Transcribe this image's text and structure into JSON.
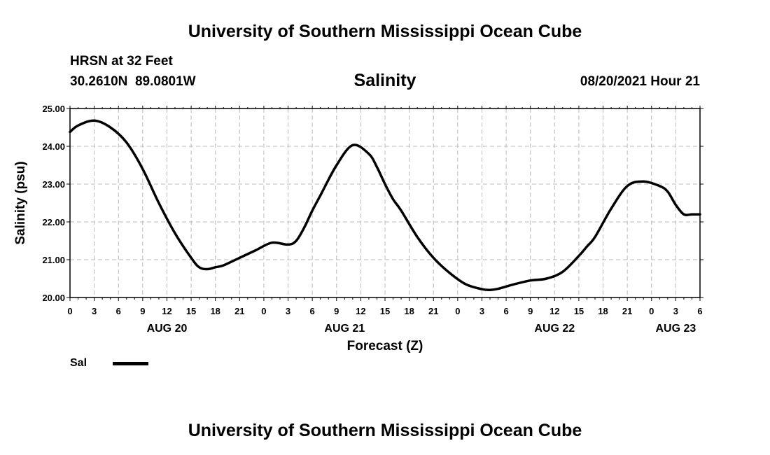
{
  "header": {
    "title_top": "University of Southern Mississippi Ocean Cube",
    "station": "HRSN at 32 Feet",
    "coords": "30.2610N  89.0801W",
    "chart_title": "Salinity",
    "datetime": "08/20/2021 Hour 21",
    "title_bottom": "University of Southern Mississippi Ocean Cube"
  },
  "legend": {
    "label": "Sal"
  },
  "colors": {
    "line": "#000000",
    "grid": "#bbbbbb",
    "background": "#ffffff"
  },
  "chart_data": {
    "type": "line",
    "title": "Salinity",
    "xlabel": "Forecast (Z)",
    "ylabel": "Salinity (psu)",
    "ylim": [
      20.0,
      25.0
    ],
    "xlim": [
      0,
      78
    ],
    "x_unit": "hours since AUG 20 00Z",
    "y_ticks": [
      "20.00",
      "21.00",
      "22.00",
      "23.00",
      "24.00",
      "25.00"
    ],
    "x_ticks": [
      "0",
      "3",
      "6",
      "9",
      "12",
      "15",
      "18",
      "21",
      "0",
      "3",
      "6",
      "9",
      "12",
      "15",
      "18",
      "21",
      "0",
      "3",
      "6",
      "9",
      "12",
      "15",
      "18",
      "21",
      "0",
      "3",
      "6"
    ],
    "day_labels": [
      {
        "label": "AUG 20",
        "hour": 12
      },
      {
        "label": "AUG 21",
        "hour": 34
      },
      {
        "label": "AUG 22",
        "hour": 60
      },
      {
        "label": "AUG 23",
        "hour": 75
      }
    ],
    "grid": true,
    "legend_position": "bottom-left",
    "series": [
      {
        "name": "Sal",
        "x": [
          0,
          1,
          3,
          5,
          7,
          9,
          11,
          13,
          15,
          16,
          17,
          18,
          19,
          21,
          23,
          25,
          27,
          28,
          29,
          30,
          31,
          33,
          35,
          37,
          38,
          39,
          40,
          41,
          43,
          45,
          47,
          49,
          51,
          52,
          53,
          55,
          57,
          59,
          61,
          63,
          64,
          65,
          67,
          69,
          71,
          73,
          74,
          75,
          76,
          77,
          78
        ],
        "y": [
          24.38,
          24.55,
          24.68,
          24.5,
          24.1,
          23.4,
          22.5,
          21.7,
          21.05,
          20.8,
          20.75,
          20.8,
          20.85,
          21.05,
          21.25,
          21.45,
          21.4,
          21.5,
          21.85,
          22.3,
          22.7,
          23.5,
          24.03,
          23.8,
          23.45,
          23.0,
          22.6,
          22.3,
          21.6,
          21.05,
          20.65,
          20.35,
          20.22,
          20.2,
          20.23,
          20.35,
          20.45,
          20.5,
          20.68,
          21.1,
          21.35,
          21.6,
          22.35,
          22.95,
          23.07,
          22.95,
          22.8,
          22.45,
          22.2,
          22.2,
          22.2
        ]
      }
    ]
  }
}
